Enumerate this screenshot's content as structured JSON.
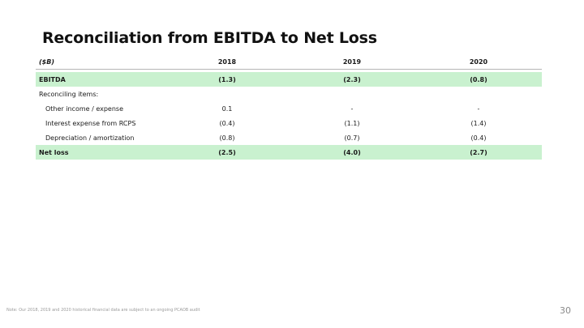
{
  "title": "Reconciliation from EBITDA to Net Loss",
  "table": {
    "header": {
      "unit": "($B)",
      "years": [
        "2018",
        "2019",
        "2020"
      ]
    },
    "rows": [
      {
        "label": "EBITDA",
        "values": [
          "(1.3)",
          "(2.3)",
          "(0.8)"
        ]
      },
      {
        "label": "Reconciling items:",
        "values": [
          "",
          "",
          ""
        ]
      },
      {
        "label": "Other income / expense",
        "values": [
          "0.1",
          "-",
          "-"
        ]
      },
      {
        "label": "Interest expense from RCPS",
        "values": [
          "(0.4)",
          "(1.1)",
          "(1.4)"
        ]
      },
      {
        "label": "Depreciation / amortization",
        "values": [
          "(0.8)",
          "(0.7)",
          "(0.4)"
        ]
      },
      {
        "label": "Net loss",
        "values": [
          "(2.5)",
          "(4.0)",
          "(2.7)"
        ]
      }
    ]
  },
  "highlight_color": "#c9f1cf",
  "footnote": "Note: Our 2018, 2019 and 2020 historical financial data are subject to an ongoing PCAOB audit",
  "page_number": "30"
}
